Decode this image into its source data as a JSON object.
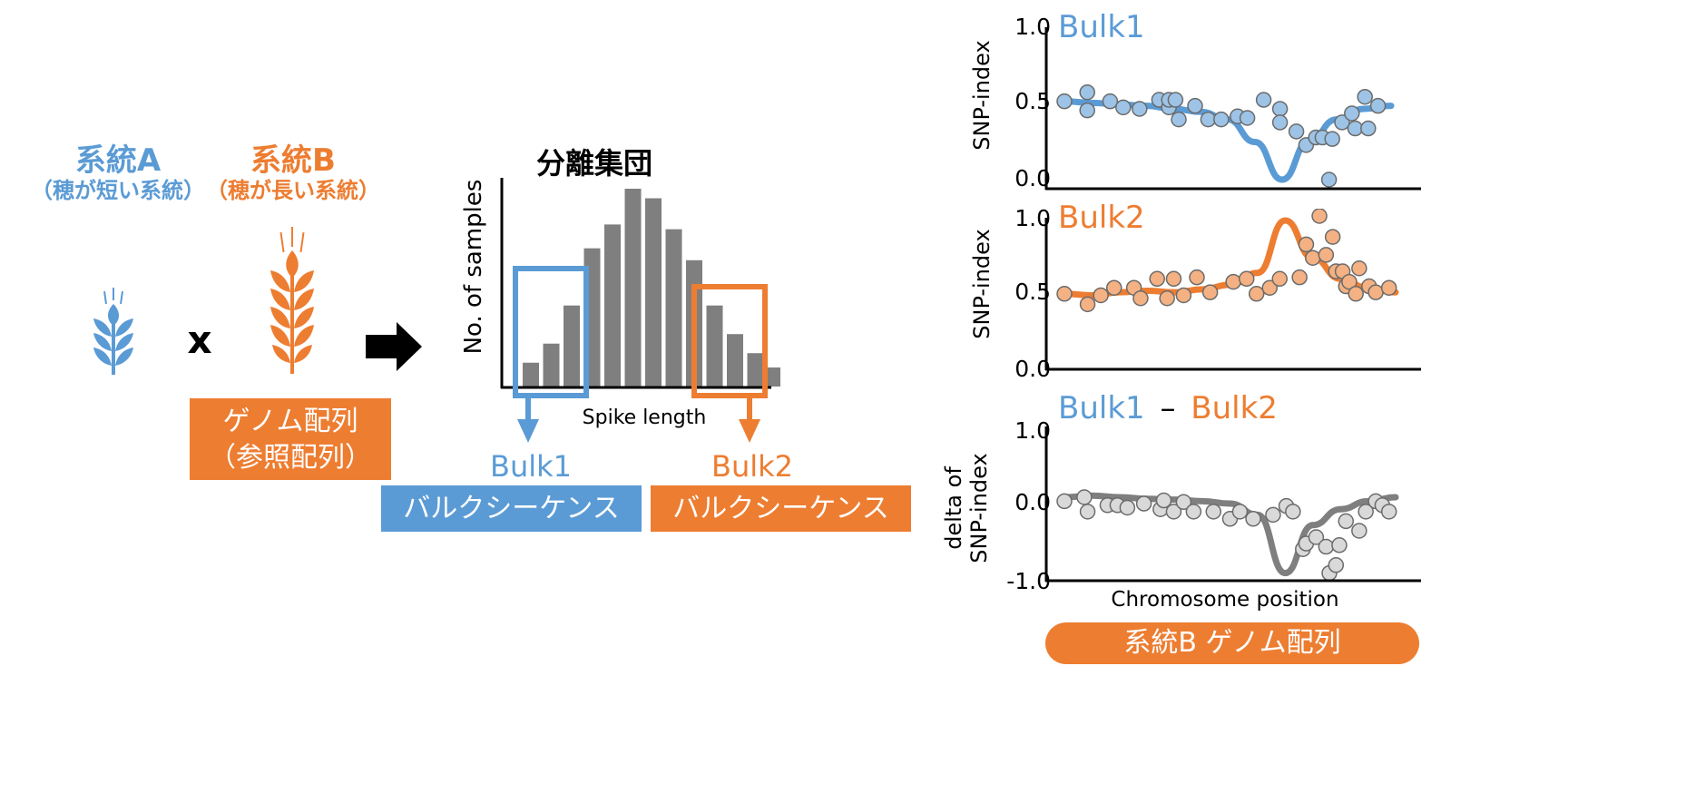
{
  "parents": {
    "a": {
      "name": "系統A",
      "desc": "（穂が短い系統）",
      "color": "#5b9bd5"
    },
    "b": {
      "name": "系統B",
      "desc": "（穂が長い系統）",
      "color": "#ed7d31"
    },
    "cross_symbol": "x"
  },
  "reference_box": {
    "line1": "ゲノム配列",
    "line2": "（参照配列）"
  },
  "histogram": {
    "title": "分離集団",
    "ylabel": "No. of samples",
    "xlabel": "Spike length"
  },
  "bulks": {
    "bulk1": {
      "label": "Bulk1",
      "seq": "バルクシーケンス"
    },
    "bulk2": {
      "label": "Bulk2",
      "seq": "バルクシーケンス"
    }
  },
  "plots": {
    "ylabel": "SNP-index",
    "delta_ylabel_line1": "delta of",
    "delta_ylabel_line2": "SNP-index",
    "xlabel": "Chromosome position",
    "minus": "–",
    "bottom_label": "系統B ゲノム配列"
  },
  "colors": {
    "blue": "#5b9bd5",
    "orange": "#ed7d31",
    "gray": "#7f7f7f",
    "blue_pt": "#9dc3e6",
    "orange_pt": "#f4b183",
    "gray_pt": "#d9d9d9"
  },
  "chart_data": [
    {
      "type": "bar",
      "title": "分離集団",
      "xlabel": "Spike length",
      "ylabel": "No. of samples",
      "values": [
        1.0,
        1.8,
        3.4,
        5.8,
        6.8,
        8.3,
        7.9,
        6.6,
        5.3,
        3.4,
        2.2,
        1.4,
        0.8
      ]
    },
    {
      "type": "scatter",
      "title": "Bulk1",
      "ylabel": "SNP-index",
      "ylim": [
        0.0,
        1.0
      ],
      "yticks": [
        "0.0",
        "0.5",
        "1.0"
      ],
      "x": [
        0.0,
        0.07,
        0.07,
        0.14,
        0.18,
        0.23,
        0.29,
        0.32,
        0.32,
        0.34,
        0.35,
        0.4,
        0.44,
        0.48,
        0.53,
        0.56,
        0.61,
        0.66,
        0.66,
        0.71,
        0.74,
        0.77,
        0.79,
        0.81,
        0.82,
        0.85,
        0.88,
        0.89,
        0.92,
        0.93,
        0.96
      ],
      "y": [
        0.52,
        0.58,
        0.46,
        0.52,
        0.48,
        0.47,
        0.53,
        0.48,
        0.53,
        0.53,
        0.4,
        0.49,
        0.4,
        0.4,
        0.42,
        0.41,
        0.53,
        0.47,
        0.38,
        0.32,
        0.23,
        0.28,
        0.28,
        0.0,
        0.27,
        0.38,
        0.44,
        0.34,
        0.55,
        0.34,
        0.49
      ],
      "fit_y": [
        0.52,
        0.51,
        0.5,
        0.49,
        0.47,
        0.45,
        0.4,
        0.25,
        0.0,
        0.26,
        0.4,
        0.47,
        0.49
      ]
    },
    {
      "type": "scatter",
      "title": "Bulk2",
      "ylabel": "SNP-index",
      "ylim": [
        0.0,
        1.0
      ],
      "yticks": [
        "0.0",
        "0.5",
        "1.0"
      ],
      "x": [
        0.0,
        0.07,
        0.11,
        0.15,
        0.21,
        0.23,
        0.28,
        0.31,
        0.33,
        0.36,
        0.4,
        0.44,
        0.51,
        0.55,
        0.58,
        0.62,
        0.65,
        0.71,
        0.73,
        0.75,
        0.77,
        0.79,
        0.81,
        0.82,
        0.84,
        0.85,
        0.86,
        0.88,
        0.89,
        0.92,
        0.94,
        0.98
      ],
      "y": [
        0.48,
        0.41,
        0.47,
        0.52,
        0.52,
        0.45,
        0.58,
        0.45,
        0.58,
        0.47,
        0.59,
        0.49,
        0.56,
        0.58,
        0.48,
        0.52,
        0.58,
        0.59,
        0.81,
        0.72,
        1.0,
        0.74,
        0.86,
        0.63,
        0.63,
        0.53,
        0.56,
        0.48,
        0.65,
        0.53,
        0.49,
        0.52
      ],
      "fit_y": [
        0.48,
        0.47,
        0.49,
        0.5,
        0.49,
        0.51,
        0.54,
        0.62,
        0.97,
        0.72,
        0.58,
        0.52,
        0.49
      ]
    },
    {
      "type": "scatter",
      "title_parts": [
        "Bulk1",
        "–",
        "Bulk2"
      ],
      "ylabel": "delta of SNP-index",
      "ylim": [
        -1.0,
        1.0
      ],
      "yticks": [
        "-1.0",
        "0.0",
        "1.0"
      ],
      "xlabel": "Chromosome position",
      "x": [
        0.0,
        0.06,
        0.07,
        0.13,
        0.16,
        0.19,
        0.24,
        0.29,
        0.3,
        0.33,
        0.36,
        0.39,
        0.45,
        0.5,
        0.53,
        0.57,
        0.63,
        0.67,
        0.69,
        0.72,
        0.73,
        0.76,
        0.79,
        0.8,
        0.82,
        0.83,
        0.85,
        0.89,
        0.91,
        0.94,
        0.96,
        0.98
      ],
      "y": [
        -0.05,
        0.0,
        -0.18,
        -0.1,
        -0.1,
        -0.13,
        -0.08,
        -0.15,
        -0.04,
        -0.18,
        -0.06,
        -0.18,
        -0.18,
        -0.27,
        -0.18,
        -0.27,
        -0.22,
        -0.11,
        -0.18,
        -0.65,
        -0.58,
        -0.5,
        -0.62,
        -0.95,
        -0.85,
        -0.6,
        -0.3,
        -0.42,
        -0.18,
        -0.05,
        -0.1,
        -0.18
      ],
      "fit_y": [
        0.0,
        0.02,
        0.0,
        -0.02,
        -0.03,
        -0.05,
        -0.08,
        -0.22,
        -0.95,
        -0.35,
        -0.15,
        -0.05,
        0.0
      ]
    }
  ]
}
